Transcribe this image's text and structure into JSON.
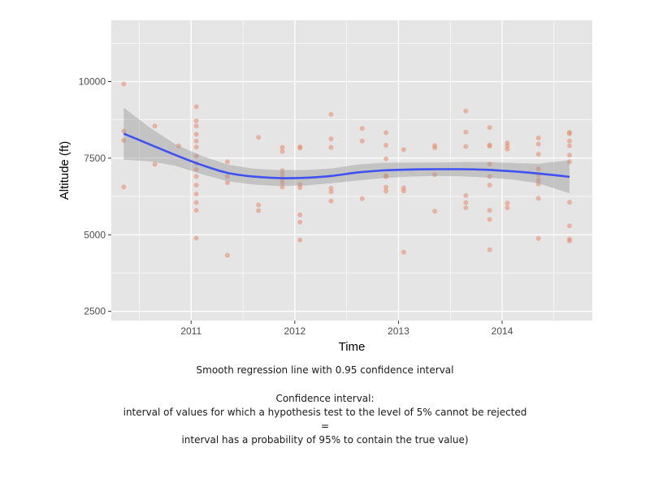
{
  "chart_data": {
    "type": "scatter",
    "title": "",
    "xlabel": "Time",
    "ylabel": "Altitude (ft)",
    "xlim": [
      2010.23,
      2014.87
    ],
    "ylim": [
      2200,
      12000
    ],
    "x_ticks": [
      {
        "value": 2011,
        "label": "2011"
      },
      {
        "value": 2012,
        "label": "2012"
      },
      {
        "value": 2013,
        "label": "2013"
      },
      {
        "value": 2014,
        "label": "2014"
      }
    ],
    "y_ticks": [
      {
        "value": 2500,
        "label": "2500"
      },
      {
        "value": 5000,
        "label": "5000"
      },
      {
        "value": 7500,
        "label": "7500"
      },
      {
        "value": 10000,
        "label": "10000"
      }
    ],
    "grid": true,
    "legend": "none",
    "colors": {
      "panel": "#e5e5e5",
      "grid": "#ffffff",
      "points": "#e8896a",
      "smooth_line": "#3f51f2",
      "ribbon": "#999999"
    },
    "points": [
      [
        2010.35,
        9920
      ],
      [
        2010.35,
        8380
      ],
      [
        2010.35,
        8080
      ],
      [
        2010.35,
        6560
      ],
      [
        2010.65,
        8550
      ],
      [
        2010.65,
        7300
      ],
      [
        2010.88,
        7900
      ],
      [
        2011.05,
        9180
      ],
      [
        2011.05,
        8720
      ],
      [
        2011.05,
        8550
      ],
      [
        2011.05,
        8280
      ],
      [
        2011.05,
        8060
      ],
      [
        2011.05,
        7860
      ],
      [
        2011.05,
        7570
      ],
      [
        2011.05,
        7320
      ],
      [
        2011.05,
        7130
      ],
      [
        2011.05,
        6900
      ],
      [
        2011.05,
        6620
      ],
      [
        2011.05,
        6330
      ],
      [
        2011.05,
        6050
      ],
      [
        2011.05,
        5800
      ],
      [
        2011.05,
        4890
      ],
      [
        2011.35,
        7380
      ],
      [
        2011.35,
        6900
      ],
      [
        2011.35,
        6700
      ],
      [
        2011.35,
        4330
      ],
      [
        2011.65,
        8180
      ],
      [
        2011.65,
        5970
      ],
      [
        2011.65,
        5790
      ],
      [
        2011.88,
        7850
      ],
      [
        2011.88,
        7720
      ],
      [
        2011.88,
        7090
      ],
      [
        2011.88,
        6960
      ],
      [
        2011.88,
        6820
      ],
      [
        2011.88,
        6700
      ],
      [
        2011.88,
        6560
      ],
      [
        2012.05,
        7870
      ],
      [
        2012.05,
        7830
      ],
      [
        2012.05,
        6640
      ],
      [
        2012.05,
        6540
      ],
      [
        2012.05,
        5650
      ],
      [
        2012.05,
        5410
      ],
      [
        2012.05,
        4830
      ],
      [
        2012.35,
        8930
      ],
      [
        2012.35,
        8130
      ],
      [
        2012.35,
        7850
      ],
      [
        2012.35,
        6520
      ],
      [
        2012.35,
        6400
      ],
      [
        2012.35,
        6100
      ],
      [
        2012.65,
        8470
      ],
      [
        2012.65,
        8060
      ],
      [
        2012.65,
        6180
      ],
      [
        2012.88,
        8330
      ],
      [
        2012.88,
        7920
      ],
      [
        2012.88,
        7480
      ],
      [
        2012.88,
        6930
      ],
      [
        2012.88,
        6890
      ],
      [
        2012.88,
        6550
      ],
      [
        2012.88,
        6420
      ],
      [
        2013.05,
        7780
      ],
      [
        2013.05,
        6530
      ],
      [
        2013.05,
        6430
      ],
      [
        2013.05,
        4430
      ],
      [
        2013.35,
        7910
      ],
      [
        2013.35,
        7840
      ],
      [
        2013.35,
        6960
      ],
      [
        2013.35,
        5770
      ],
      [
        2013.65,
        9040
      ],
      [
        2013.65,
        8350
      ],
      [
        2013.65,
        7880
      ],
      [
        2013.65,
        6280
      ],
      [
        2013.65,
        6050
      ],
      [
        2013.65,
        5880
      ],
      [
        2013.88,
        8500
      ],
      [
        2013.88,
        7930
      ],
      [
        2013.88,
        7890
      ],
      [
        2013.88,
        7310
      ],
      [
        2013.88,
        6900
      ],
      [
        2013.88,
        6620
      ],
      [
        2013.88,
        5800
      ],
      [
        2013.88,
        5500
      ],
      [
        2013.88,
        4510
      ],
      [
        2014.05,
        8000
      ],
      [
        2014.05,
        7900
      ],
      [
        2014.05,
        7800
      ],
      [
        2014.05,
        6030
      ],
      [
        2014.05,
        5880
      ],
      [
        2014.35,
        8160
      ],
      [
        2014.35,
        7960
      ],
      [
        2014.35,
        7630
      ],
      [
        2014.35,
        7150
      ],
      [
        2014.35,
        6960
      ],
      [
        2014.35,
        6790
      ],
      [
        2014.35,
        6660
      ],
      [
        2014.35,
        6190
      ],
      [
        2014.35,
        4880
      ],
      [
        2014.65,
        8340
      ],
      [
        2014.65,
        8300
      ],
      [
        2014.65,
        8060
      ],
      [
        2014.65,
        7900
      ],
      [
        2014.65,
        7600
      ],
      [
        2014.65,
        7380
      ],
      [
        2014.65,
        6060
      ],
      [
        2014.65,
        5290
      ],
      [
        2014.65,
        4860
      ],
      [
        2014.65,
        4800
      ]
    ],
    "smooth": {
      "x": [
        2010.35,
        2010.6,
        2010.85,
        2011.1,
        2011.35,
        2011.6,
        2011.85,
        2012.1,
        2012.35,
        2012.6,
        2012.85,
        2013.1,
        2013.35,
        2013.6,
        2013.85,
        2014.1,
        2014.35,
        2014.65
      ],
      "y": [
        8300,
        7950,
        7600,
        7280,
        7020,
        6900,
        6850,
        6860,
        6920,
        7030,
        7100,
        7130,
        7140,
        7140,
        7120,
        7070,
        7000,
        6890
      ],
      "lower": [
        7450,
        7400,
        7250,
        6980,
        6750,
        6640,
        6590,
        6610,
        6680,
        6770,
        6850,
        6900,
        6920,
        6910,
        6870,
        6800,
        6680,
        6350
      ],
      "upper": [
        9150,
        8500,
        7950,
        7580,
        7290,
        7160,
        7110,
        7110,
        7160,
        7290,
        7350,
        7360,
        7360,
        7370,
        7370,
        7340,
        7320,
        7430
      ]
    }
  },
  "caption": {
    "line1": "Smooth regression line with 0.95 confidence interval",
    "line2": "Confidence interval:",
    "line3": "interval of values for which a hypothesis test to the level of 5% cannot be rejected",
    "line4": "=",
    "line5": "interval has a probability of 95% to contain the true value)"
  }
}
